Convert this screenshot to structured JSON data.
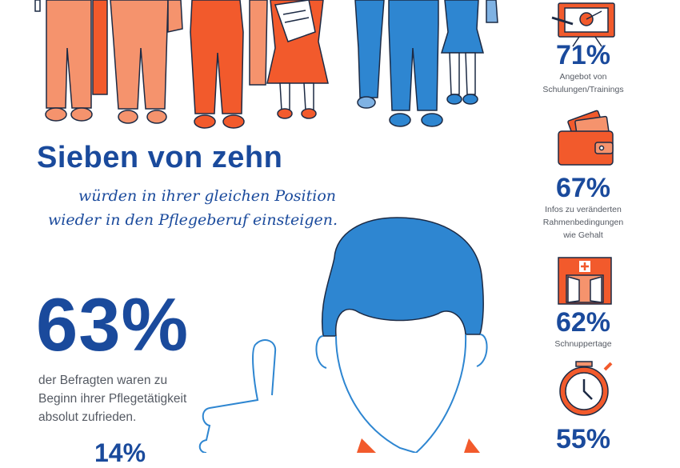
{
  "headline": "Sieben von zehn",
  "subline": [
    "würden in ihrer gleichen Position",
    "wieder in den Pflegeberuf einsteigen."
  ],
  "main_stat": {
    "percent": "63%",
    "description": [
      "der Befragten waren zu",
      "Beginn ihrer Pflegetätigkeit",
      "absolut zufrieden."
    ]
  },
  "cut_stat": {
    "percent": "14%"
  },
  "stats": [
    {
      "percent": "71%",
      "label": [
        "Angebot von",
        "Schulungen/Trainings"
      ],
      "icon": "presentation-board-icon"
    },
    {
      "percent": "67%",
      "label": [
        "Infos zu veränderten",
        "Rahmenbedingungen",
        "wie Gehalt"
      ],
      "icon": "wallet-icon"
    },
    {
      "percent": "62%",
      "label": [
        "Schnuppertage"
      ],
      "icon": "hospital-door-icon"
    },
    {
      "percent": "55%",
      "label": [],
      "icon": "stopwatch-icon"
    }
  ],
  "colors": {
    "blue_dark": "#1a4a9c",
    "blue_mid": "#2e86d1",
    "blue_light": "#7fb2e3",
    "orange": "#f25a2c",
    "salmon": "#f5936d",
    "gray_text": "#555a63"
  }
}
